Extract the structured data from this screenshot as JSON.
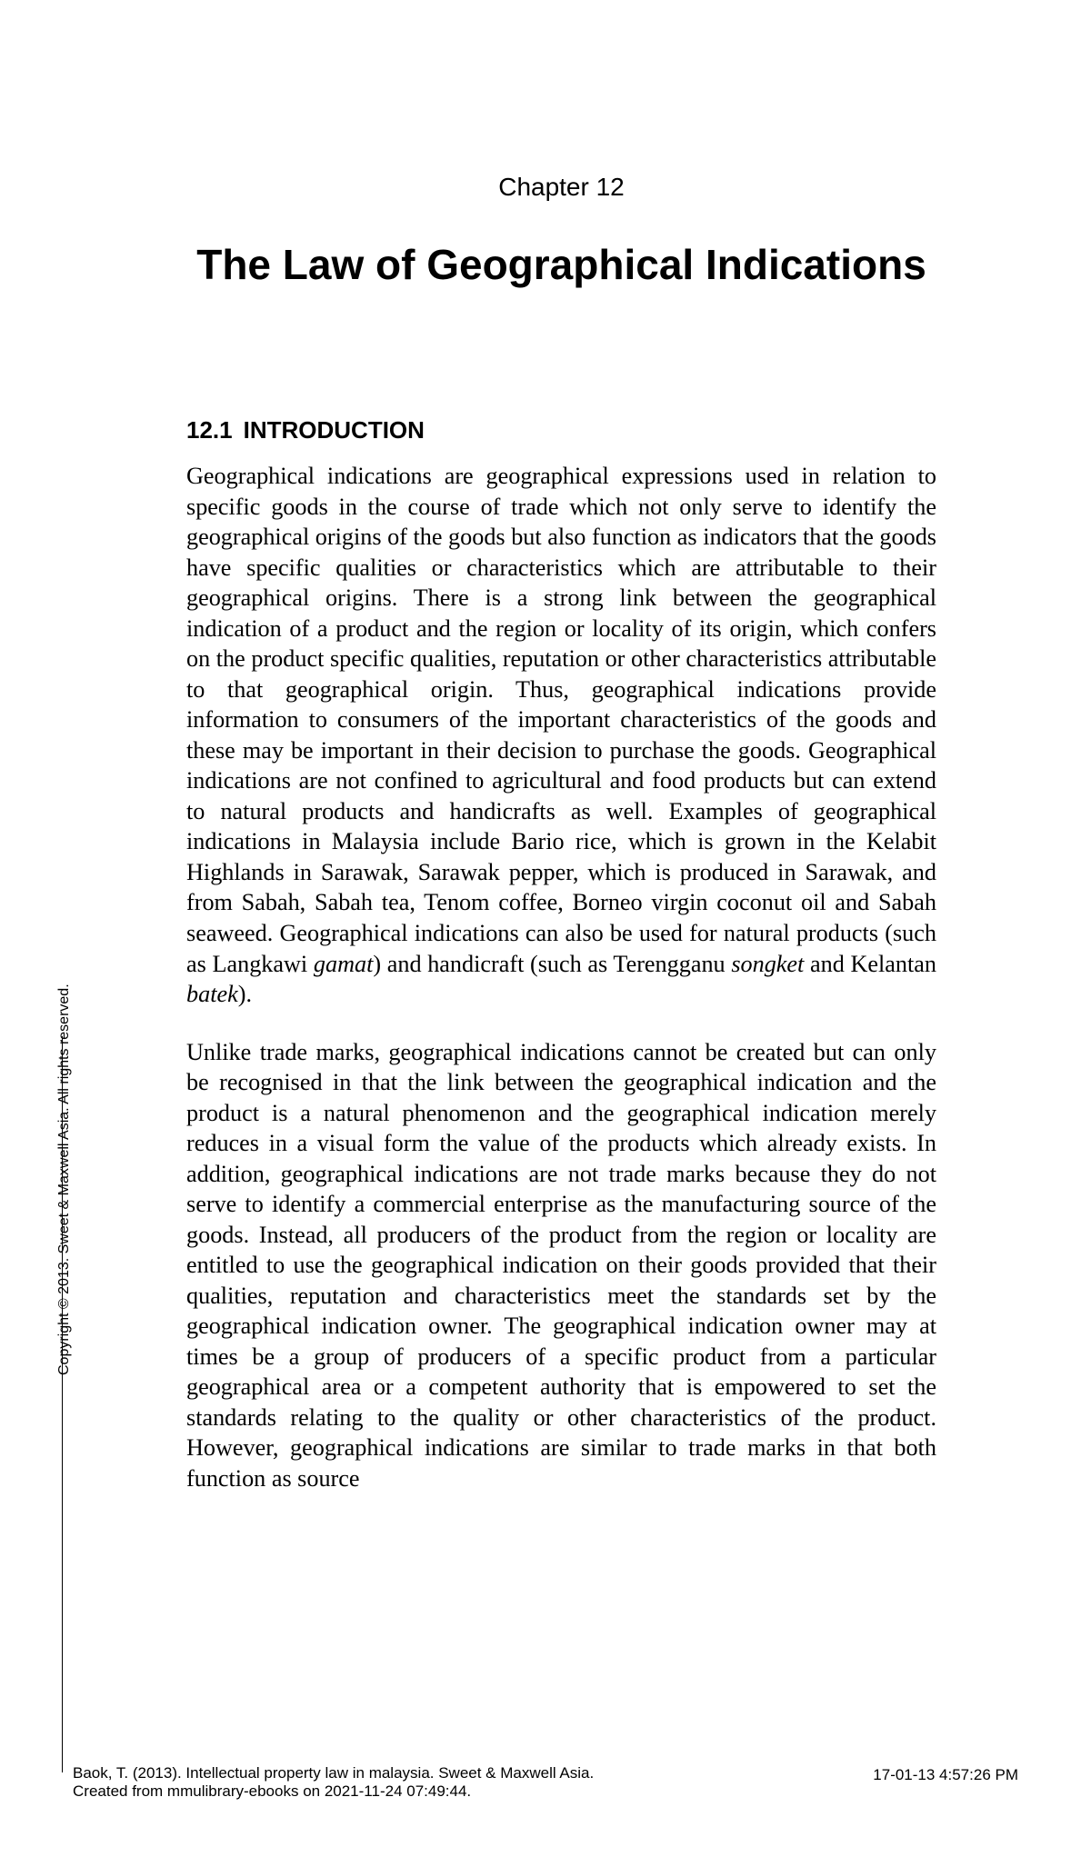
{
  "chapter": {
    "number": "Chapter 12",
    "title": "The Law of Geographical Indications"
  },
  "section": {
    "number": "12.1",
    "heading": "INTRODUCTION"
  },
  "paragraphs": {
    "p1_a": "Geographical indications are geographical expressions used in relation to specific goods in the course of trade which not only serve to identify the geographical origins of the goods but also function as indicators that the goods have specific qualities or characteristics which are attributable to their geographical origins. There is a strong link between the geographical indication of a product and the region or locality of its origin, which confers on the product specific qualities, reputation or other characteristics attributable to that geographical origin. Thus, geographical indications provide information to consumers of the important characteristics of the goods and these may be important in their decision to purchase the goods. Geographical indications are not confined to agricultural and food products but can extend to natural products and handicrafts as well. Examples of geographical indications in Malaysia include Bario rice, which is grown in the Kelabit Highlands in Sarawak, Sarawak pepper, which is produced in Sarawak, and from Sabah, Sabah tea, Tenom coffee, Borneo virgin coconut oil and Sabah seaweed. Geographical indications can also be used for natural products (such as Langkawi ",
    "p1_i1": "gamat",
    "p1_b": ") and handicraft (such as Terengganu ",
    "p1_i2": "songket",
    "p1_c": " and Kelantan ",
    "p1_i3": "batek",
    "p1_d": ").",
    "p2": "Unlike trade marks, geographical indications cannot be created but can only be recognised in that the link between the geographical indication and the product is a natural phenomenon and the geographical indication merely reduces in a visual form the value of the products which already exists. In addition, geographical indications are not trade marks because they do not serve to identify a commercial enterprise as the manufacturing source of the goods. Instead, all producers of the product from the region or locality are entitled to use the geographical indication on their goods provided that their qualities, reputation and characteristics meet the standards set by the geographical indication owner. The geographical indication owner may at times be a group of producers of a specific product from a particular geographical area or a competent authority that is empowered to set the standards relating to the quality or other characteristics of the product. However, geographical indications are similar to trade marks in that both function as source"
  },
  "copyright_vertical": "Copyright © 2013. Sweet & Maxwell Asia. All rights reserved.",
  "footer": {
    "line1": "Baok, T. (2013). Intellectual property law in malaysia. Sweet & Maxwell Asia.",
    "line2": "Created from mmulibrary-ebooks on 2021-11-24 07:49:44.",
    "right": "17-01-13   4:57:26 PM"
  }
}
